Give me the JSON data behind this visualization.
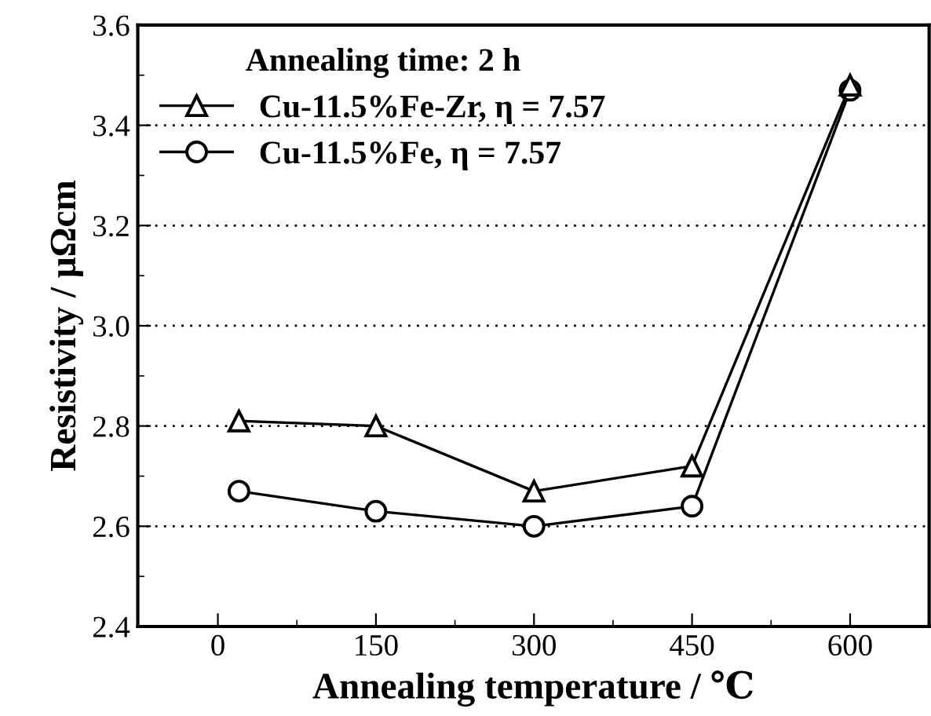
{
  "chart_data": {
    "type": "line",
    "xlabel": "Annealing temperature / ℃",
    "ylabel": "Resistivity / μΩcm",
    "legend_title": "Annealing time: 2 h",
    "x": [
      20,
      150,
      300,
      450,
      600
    ],
    "series": [
      {
        "name": "Cu-11.5%Fe-Zr, η = 7.57",
        "color": "#000000",
        "marker": "triangle",
        "values": [
          2.81,
          2.8,
          2.67,
          2.72,
          3.48
        ]
      },
      {
        "name": "Cu-11.5%Fe, η = 7.57",
        "color": "#000000",
        "marker": "circle",
        "values": [
          2.67,
          2.63,
          2.6,
          2.64,
          3.47
        ]
      }
    ],
    "xlim": [
      -76,
      675
    ],
    "xticks": [
      0,
      150,
      300,
      450,
      600
    ],
    "ylim": [
      2.4,
      3.6
    ],
    "yticks": [
      2.4,
      2.6,
      2.8,
      {
        "value": 3,
        "label": "3.0"
      },
      3.2,
      3.4,
      3.6
    ],
    "grid": "y",
    "legend": "top left",
    "line_style": "solid"
  }
}
